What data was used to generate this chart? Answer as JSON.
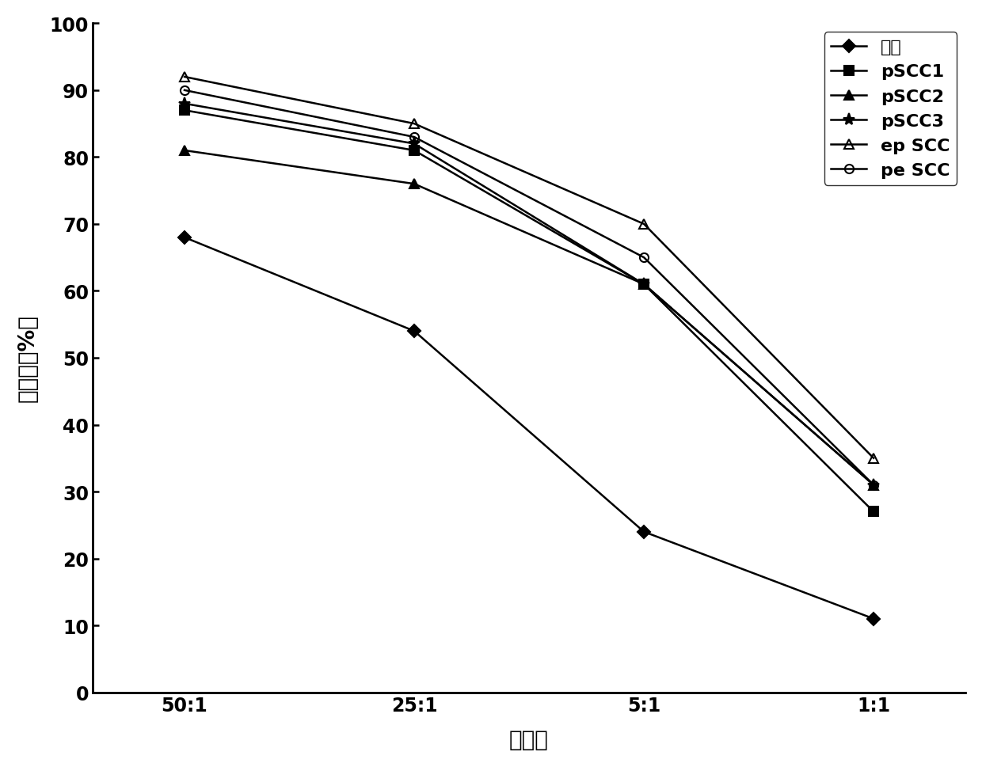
{
  "x_labels": [
    "50:1",
    "25:1",
    "5:1",
    "1:1"
  ],
  "x_positions": [
    0,
    1,
    2,
    3
  ],
  "series": [
    {
      "label": "对照",
      "values": [
        68,
        54,
        24,
        11
      ],
      "color": "#000000",
      "marker": "D",
      "marker_size": 8,
      "linestyle": "-",
      "linewidth": 1.8,
      "fillstyle": "full"
    },
    {
      "label": "pSCC1",
      "values": [
        87,
        81,
        61,
        27
      ],
      "color": "#000000",
      "marker": "s",
      "marker_size": 8,
      "linestyle": "-",
      "linewidth": 1.8,
      "fillstyle": "full"
    },
    {
      "label": "pSCC2",
      "values": [
        81,
        76,
        61,
        31
      ],
      "color": "#000000",
      "marker": "^",
      "marker_size": 8,
      "linestyle": "-",
      "linewidth": 1.8,
      "fillstyle": "full"
    },
    {
      "label": "pSCC3",
      "values": [
        88,
        82,
        61,
        31
      ],
      "color": "#000000",
      "marker": "*",
      "marker_size": 11,
      "linestyle": "-",
      "linewidth": 1.8,
      "fillstyle": "full"
    },
    {
      "label": "ep SCC",
      "values": [
        92,
        85,
        70,
        35
      ],
      "color": "#000000",
      "marker": "^",
      "marker_size": 8,
      "linestyle": "-",
      "linewidth": 1.8,
      "fillstyle": "none"
    },
    {
      "label": "pe SCC",
      "values": [
        90,
        83,
        65,
        31
      ],
      "color": "#000000",
      "marker": "o",
      "marker_size": 8,
      "linestyle": "-",
      "linewidth": 1.8,
      "fillstyle": "none"
    }
  ],
  "xlabel": "效靶比",
  "ylabel": "杀伤率（%）",
  "ylim": [
    0,
    100
  ],
  "yticks": [
    0,
    10,
    20,
    30,
    40,
    50,
    60,
    70,
    80,
    90,
    100
  ],
  "title": "",
  "legend_loc": "upper right",
  "xlabel_fontsize": 20,
  "ylabel_fontsize": 20,
  "tick_fontsize": 17,
  "legend_fontsize": 16,
  "background_color": "#ffffff"
}
